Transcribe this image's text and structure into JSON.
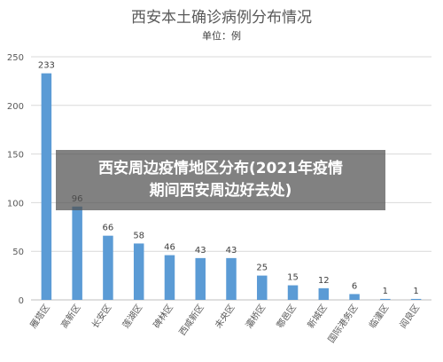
{
  "chart_data": {
    "type": "bar",
    "title": "西安本土确诊病例分布情况",
    "subtitle": "单位：例",
    "categories": [
      "雁塔区",
      "高新区",
      "长安区",
      "莲湖区",
      "碑林区",
      "西咸新区",
      "未央区",
      "灞桥区",
      "鄠邑区",
      "新城区",
      "国际港务区",
      "临潼区",
      "阎良区"
    ],
    "values": [
      233,
      96,
      66,
      58,
      46,
      43,
      43,
      25,
      15,
      12,
      6,
      1,
      1
    ],
    "yticks": [
      0,
      50,
      100,
      150,
      200,
      250
    ],
    "ylim": [
      0,
      250
    ],
    "grid": true,
    "bar_color": "#5b9bd5"
  },
  "overlay": {
    "line1": "西安周边疫情地区分布(2021年疫情",
    "line2": "期间西安周边好去处)"
  }
}
